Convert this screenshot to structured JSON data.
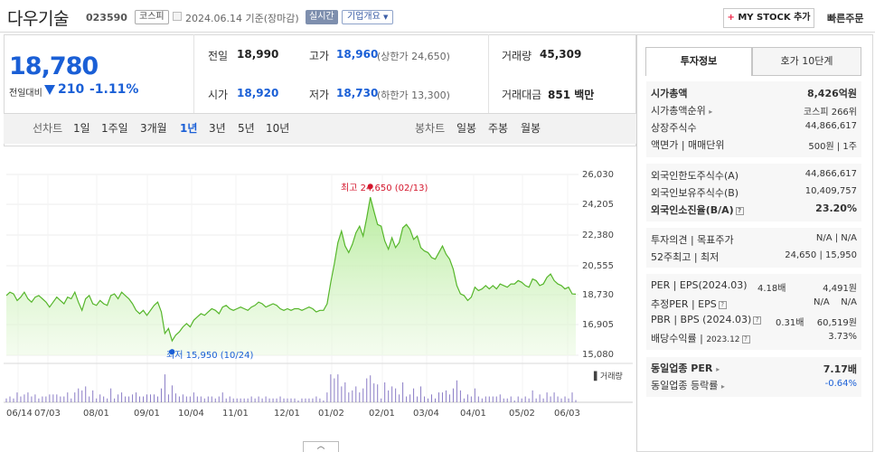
{
  "header": {
    "stock_name": "다우기술",
    "stock_code": "023590",
    "market": "코스피",
    "date": "2024.06.14  기준(장마감)",
    "realtime": "실시간",
    "company_overview": "기업개요",
    "mystock_label": "MY STOCK 추가",
    "quick_order": "빠른주문"
  },
  "quote": {
    "current_price": "18,780",
    "change_label": "전일대비",
    "change": "210",
    "change_pct": "-1.11%",
    "prev_close_label": "전일",
    "prev_close": "18,990",
    "high_label": "고가",
    "high": "18,960",
    "upper_limit": "(상한가 24,650)",
    "volume_label": "거래량",
    "volume": "45,309",
    "open_label": "시가",
    "open": "18,920",
    "low_label": "저가",
    "low": "18,730",
    "lower_limit": "(하한가 13,300)",
    "trade_value_label": "거래대금",
    "trade_value": "851 백만"
  },
  "tabs": {
    "line_chart": "선차트",
    "periods": [
      "1일",
      "1주일",
      "3개월",
      "1년",
      "3년",
      "5년",
      "10년"
    ],
    "selected": "1년",
    "candle_chart": "봉차트",
    "candle_periods": [
      "일봉",
      "주봉",
      "월봉"
    ]
  },
  "chart_data": {
    "type": "area",
    "title": "",
    "y_ticks": [
      "26,030",
      "24,205",
      "22,380",
      "20,555",
      "18,730",
      "16,905",
      "15,080"
    ],
    "x_ticks": [
      "06/14",
      "07/03",
      "08/01",
      "09/01",
      "10/04",
      "11/01",
      "12/01",
      "01/02",
      "02/01",
      "03/04",
      "04/01",
      "05/02",
      "06/03"
    ],
    "ylim": [
      15080,
      26030
    ],
    "high_annotation": "최고 24,650 (02/13)",
    "low_annotation": "최저 15,950 (10/24)",
    "volume_label": "거래량",
    "series": [
      {
        "values": [
          18700,
          18900,
          18800,
          18400,
          18600,
          18900,
          18500,
          18300,
          18600,
          18700,
          18500,
          18300,
          18000,
          18300,
          18600,
          18400,
          18200,
          18600,
          18500,
          18900,
          18300,
          17800,
          18500,
          18700,
          18200,
          18100,
          18400,
          18200,
          18100,
          18700,
          18800,
          18500,
          18900,
          18700,
          18500,
          18200,
          17800,
          17600,
          17800,
          17500,
          17800,
          18100,
          18300,
          17700,
          16400,
          16700,
          15950,
          16300,
          16500,
          16800,
          17000,
          16800,
          17200,
          17400,
          17600,
          17500,
          17700,
          17900,
          17800,
          17600,
          18000,
          18100,
          17900,
          17800,
          17900,
          18000,
          17900,
          17800,
          18000,
          18100,
          18300,
          18200,
          18000,
          18100,
          18200,
          18100,
          17900,
          17800,
          17900,
          17800,
          17900,
          17900,
          17800,
          17900,
          18000,
          17900,
          17700,
          17800,
          17800,
          18200,
          19500,
          20600,
          21900,
          22600,
          21700,
          21300,
          21800,
          22500,
          22900,
          22300,
          23400,
          24650,
          23800,
          23000,
          22900,
          22000,
          21500,
          22200,
          21600,
          21900,
          22800,
          23000,
          22700,
          22100,
          22300,
          21600,
          21400,
          21300,
          21000,
          20900,
          21300,
          21700,
          21200,
          20900,
          20300,
          19300,
          18800,
          18700,
          18400,
          18600,
          19200,
          19000,
          19100,
          19300,
          19100,
          19300,
          19100,
          19400,
          19300,
          19200,
          19400,
          19400,
          19600,
          19500,
          19300,
          19200,
          19700,
          19600,
          19300,
          19400,
          19800,
          20000,
          19600,
          19400,
          19300,
          19100,
          19200,
          18800,
          18780
        ]
      }
    ]
  },
  "info": {
    "tab_invest": "투자정보",
    "tab_orderbook": "호가 10단계",
    "rows1": [
      {
        "label": "시가총액",
        "value": "8,426억원",
        "bold": true
      },
      {
        "label": "시가총액순위",
        "value": "코스피 266위"
      },
      {
        "label": "상장주식수",
        "value": "44,866,617"
      },
      {
        "label": "액면가 | 매매단위",
        "value": "500원 | 1주"
      }
    ],
    "rows2": [
      {
        "label": "외국인한도주식수(A)",
        "value": "44,866,617"
      },
      {
        "label": "외국인보유주식수(B)",
        "value": "10,409,757"
      },
      {
        "label": "외국인소진율(B/A)",
        "value": "23.20%",
        "bold": true
      }
    ],
    "rows3": [
      {
        "label": "투자의견 | 목표주가",
        "value": "N/A | N/A"
      },
      {
        "label": "52주최고 | 최저",
        "value": "24,650 | 15,950"
      }
    ],
    "per_label": "PER | EPS(2024.03)",
    "per_value": "4.18배",
    "eps_value": "4,491원",
    "est_per_label": "추정PER | EPS",
    "est_per_value": "N/A",
    "est_eps_value": "N/A",
    "pbr_label": "PBR | BPS (2024.03)",
    "pbr_value": "0.31배",
    "bps_value": "60,519원",
    "div_label": "배당수익률",
    "div_date": "2023.12",
    "div_value": "3.73%",
    "sector_per_label": "동일업종 PER",
    "sector_per_value": "7.17배",
    "sector_chg_label": "동일업종 등락률",
    "sector_chg_value": "-0.64%"
  }
}
